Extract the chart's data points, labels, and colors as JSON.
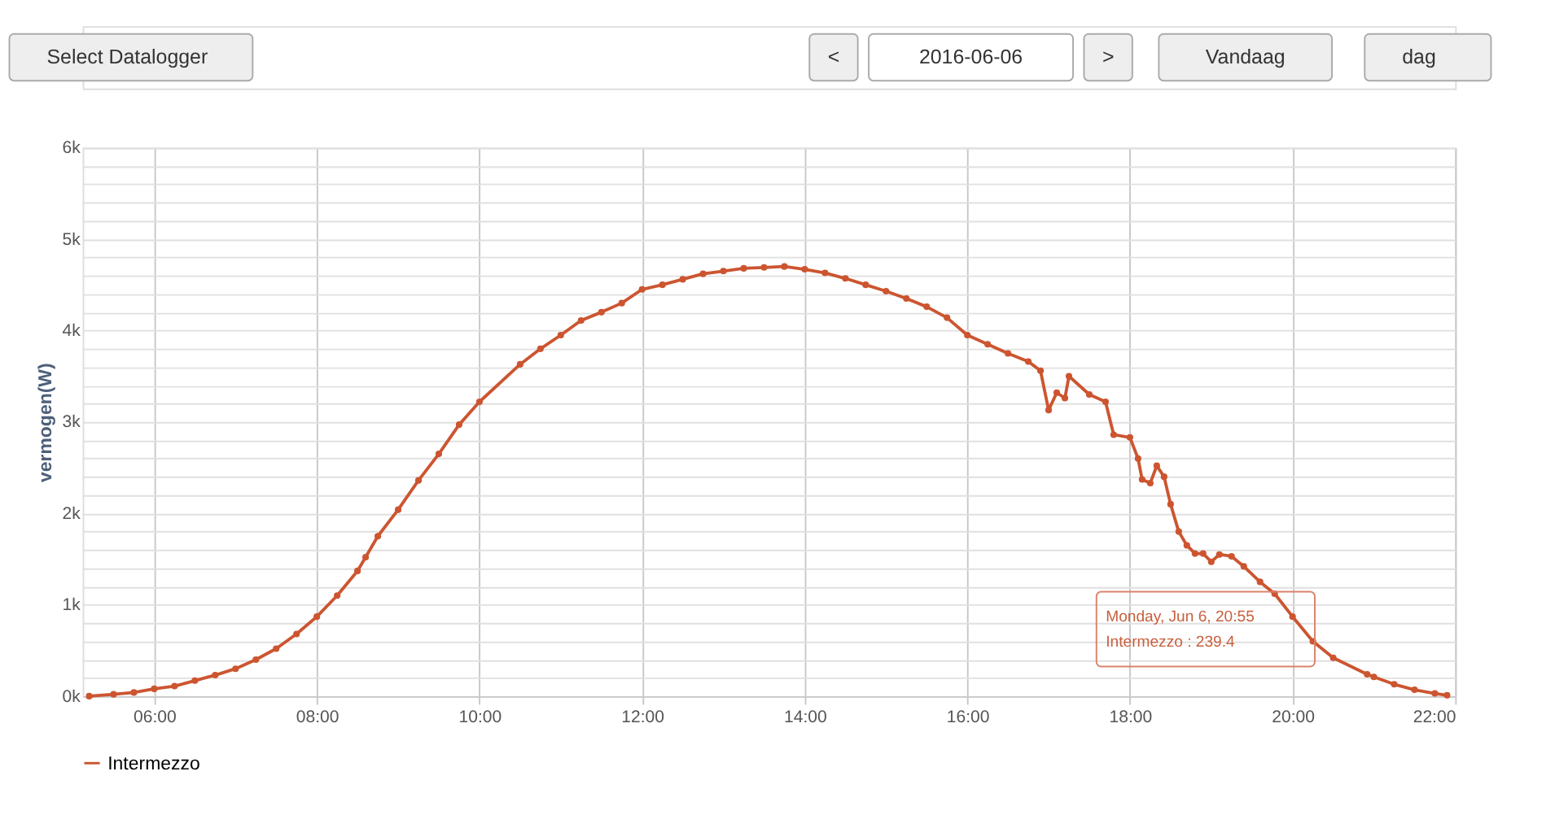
{
  "chart_data": {
    "type": "line",
    "ylabel": "vermogen(W)",
    "xlim": [
      5.12,
      22.0
    ],
    "xticks": [
      {
        "value": 6,
        "label": "06:00"
      },
      {
        "value": 8,
        "label": "08:00"
      },
      {
        "value": 10,
        "label": "10:00"
      },
      {
        "value": 12,
        "label": "12:00"
      },
      {
        "value": 14,
        "label": "14:00"
      },
      {
        "value": 16,
        "label": "16:00"
      },
      {
        "value": 18,
        "label": "18:00"
      },
      {
        "value": 20,
        "label": "20:00"
      },
      {
        "value": 22,
        "label": "22:00"
      }
    ],
    "ylim": [
      0,
      6000
    ],
    "yticks": [
      {
        "value": 0,
        "label": "0k"
      },
      {
        "value": 200,
        "label": null
      },
      {
        "value": 400,
        "label": null
      },
      {
        "value": 600,
        "label": null
      },
      {
        "value": 800,
        "label": null
      },
      {
        "value": 1000,
        "label": "1k"
      },
      {
        "value": 1200,
        "label": null
      },
      {
        "value": 1400,
        "label": null
      },
      {
        "value": 1600,
        "label": null
      },
      {
        "value": 1800,
        "label": null
      },
      {
        "value": 2000,
        "label": "2k"
      },
      {
        "value": 2200,
        "label": null
      },
      {
        "value": 2400,
        "label": null
      },
      {
        "value": 2600,
        "label": null
      },
      {
        "value": 2800,
        "label": null
      },
      {
        "value": 3000,
        "label": "3k"
      },
      {
        "value": 3200,
        "label": null
      },
      {
        "value": 3400,
        "label": null
      },
      {
        "value": 3600,
        "label": null
      },
      {
        "value": 3800,
        "label": null
      },
      {
        "value": 4000,
        "label": "4k"
      },
      {
        "value": 4200,
        "label": null
      },
      {
        "value": 4400,
        "label": null
      },
      {
        "value": 4600,
        "label": null
      },
      {
        "value": 4800,
        "label": null
      },
      {
        "value": 5000,
        "label": "5k"
      },
      {
        "value": 5200,
        "label": null
      },
      {
        "value": 5400,
        "label": null
      },
      {
        "value": 5600,
        "label": null
      },
      {
        "value": 5800,
        "label": null
      },
      {
        "value": 6000,
        "label": "6k"
      }
    ],
    "grid": true,
    "legend": "bottom",
    "marker": "circle",
    "line_style": "solid",
    "x": [
      5.2,
      5.5,
      5.75,
      6.0,
      6.25,
      6.5,
      6.75,
      7.0,
      7.25,
      7.5,
      7.75,
      8.0,
      8.25,
      8.5,
      8.6,
      8.75,
      9.0,
      9.25,
      9.5,
      9.75,
      10.0,
      10.5,
      10.75,
      11.0,
      11.25,
      11.5,
      11.75,
      12.0,
      12.25,
      12.5,
      12.75,
      13.0,
      13.25,
      13.5,
      13.75,
      14.0,
      14.25,
      14.5,
      14.75,
      15.0,
      15.25,
      15.5,
      15.75,
      16.0,
      16.25,
      16.5,
      16.75,
      16.9,
      17.0,
      17.1,
      17.2,
      17.25,
      17.5,
      17.7,
      17.8,
      18.0,
      18.1,
      18.15,
      18.25,
      18.33,
      18.42,
      18.5,
      18.6,
      18.7,
      18.8,
      18.9,
      19.0,
      19.1,
      19.25,
      19.4,
      19.6,
      19.78,
      20.0,
      20.25,
      20.5,
      20.917,
      21.0,
      21.25,
      21.5,
      21.75,
      21.9
    ],
    "series": [
      {
        "name": "Intermezzo",
        "color": "#cc5530",
        "values": [
          0,
          20,
          40,
          80,
          110,
          170,
          230,
          300,
          400,
          520,
          680,
          870,
          1100,
          1370,
          1520,
          1750,
          2040,
          2360,
          2650,
          2970,
          3220,
          3630,
          3800,
          3950,
          4110,
          4200,
          4300,
          4450,
          4500,
          4560,
          4620,
          4650,
          4680,
          4690,
          4700,
          4670,
          4630,
          4570,
          4500,
          4430,
          4350,
          4260,
          4140,
          3950,
          3850,
          3750,
          3660,
          3560,
          3130,
          3320,
          3260,
          3500,
          3300,
          3220,
          2860,
          2830,
          2600,
          2370,
          2330,
          2520,
          2400,
          2100,
          1800,
          1650,
          1560,
          1560,
          1470,
          1550,
          1530,
          1420,
          1250,
          1120,
          870,
          600,
          420,
          239.4,
          210,
          130,
          70,
          30,
          10
        ]
      }
    ],
    "annotations": [
      "Select Datalogger",
      "<",
      "2016-06-06",
      ">",
      "Vandaag",
      "dag",
      "Monday, Jun 6, 20:55\nIntermezzo : 239.4"
    ]
  }
}
